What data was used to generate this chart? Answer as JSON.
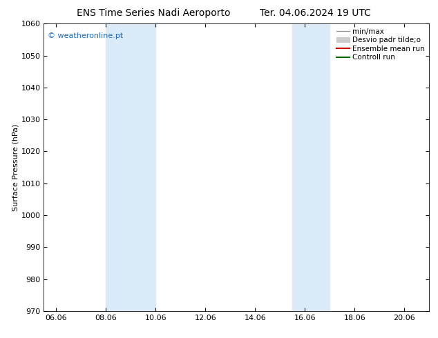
{
  "title_left": "ENS Time Series Nadi Aeroporto",
  "title_right": "Ter. 04.06.2024 19 UTC",
  "ylabel": "Surface Pressure (hPa)",
  "ylim": [
    970,
    1060
  ],
  "yticks": [
    970,
    980,
    990,
    1000,
    1010,
    1020,
    1030,
    1040,
    1050,
    1060
  ],
  "xlim_start": 5.5,
  "xlim_end": 21.0,
  "xtick_labels": [
    "06.06",
    "08.06",
    "10.06",
    "12.06",
    "14.06",
    "16.06",
    "18.06",
    "20.06"
  ],
  "xtick_positions": [
    6.0,
    8.0,
    10.0,
    12.0,
    14.0,
    16.0,
    18.0,
    20.0
  ],
  "shade_bands": [
    {
      "x_start": 8.0,
      "x_end": 10.0
    },
    {
      "x_start": 15.5,
      "x_end": 17.0
    }
  ],
  "shade_color": "#daeaf7",
  "watermark_text": "© weatheronline.pt",
  "watermark_color": "#1a6bbd",
  "legend_labels": [
    "min/max",
    "Desvio padr tilde;o",
    "Ensemble mean run",
    "Controll run"
  ],
  "legend_colors": [
    "#999999",
    "#cccccc",
    "#cc0000",
    "#006600"
  ],
  "bg_color": "#ffffff",
  "plot_bg_color": "#ffffff",
  "title_fontsize": 10,
  "tick_fontsize": 8,
  "ylabel_fontsize": 8,
  "watermark_fontsize": 8,
  "legend_fontsize": 7.5
}
